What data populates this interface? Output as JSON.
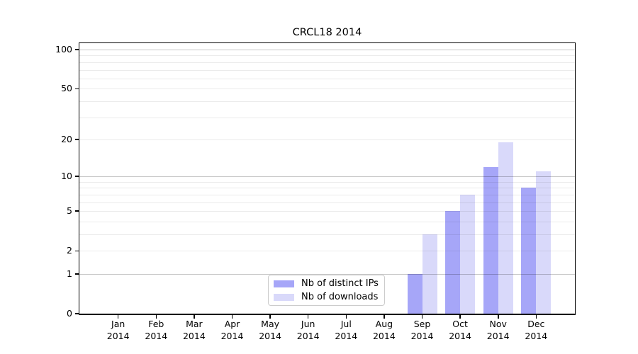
{
  "chart_data": {
    "type": "bar",
    "title": "CRCL18 2014",
    "categories": [
      "Jan",
      "Feb",
      "Mar",
      "Apr",
      "May",
      "Jun",
      "Jul",
      "Aug",
      "Sep",
      "Oct",
      "Nov",
      "Dec"
    ],
    "x_tick_second_line": "2014",
    "series": [
      {
        "name": "Nb of distinct IPs",
        "color": "#a6a6f8",
        "values": [
          0,
          0,
          0,
          0,
          0,
          0,
          0,
          0,
          1,
          5,
          12,
          8
        ]
      },
      {
        "name": "Nb of downloads",
        "color": "#d9d9fa",
        "values": [
          0,
          0,
          0,
          0,
          0,
          0,
          0,
          0,
          3,
          7,
          19,
          11
        ]
      }
    ],
    "xlabel": "",
    "ylabel": "",
    "scale": "log1p",
    "ylim": [
      0,
      112
    ],
    "yticks": [
      0,
      1,
      2,
      5,
      10,
      20,
      50,
      100
    ],
    "grid": {
      "major_values": [
        1,
        10,
        100
      ],
      "minor_values": [
        2,
        3,
        4,
        5,
        6,
        7,
        8,
        9,
        20,
        30,
        40,
        50,
        60,
        70,
        80,
        90
      ],
      "major_color": "rgba(0,0,0,0.22)",
      "minor_color": "rgba(0,0,0,0.08)"
    },
    "legend": {
      "position": "lower center"
    },
    "frame_color": "#000000",
    "background_color": "#ffffff"
  }
}
